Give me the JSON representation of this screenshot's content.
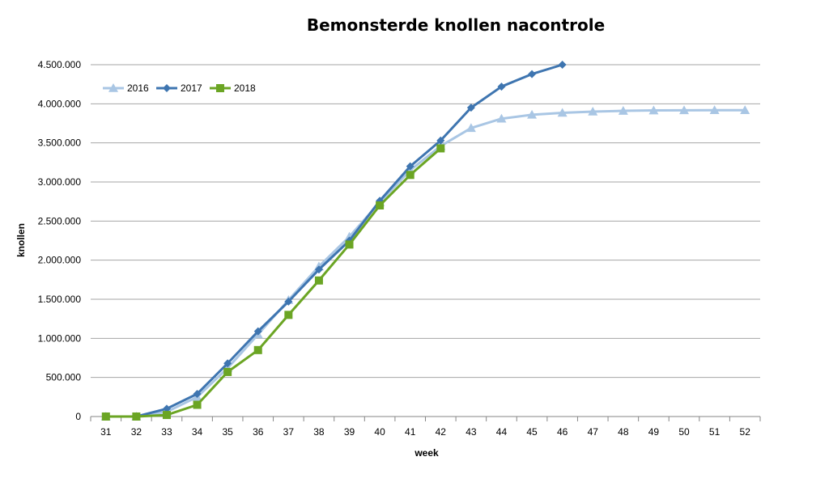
{
  "chart_data": {
    "type": "line",
    "title": "Bemonsterde knollen nacontrole",
    "xlabel": "week",
    "ylabel": "knollen",
    "categories": [
      "31",
      "32",
      "33",
      "34",
      "35",
      "36",
      "37",
      "38",
      "39",
      "40",
      "41",
      "42",
      "43",
      "44",
      "45",
      "46",
      "47",
      "48",
      "49",
      "50",
      "51",
      "52"
    ],
    "ylim": [
      0,
      4500000
    ],
    "yticks": [
      0,
      500000,
      1000000,
      1500000,
      2000000,
      2500000,
      3000000,
      3500000,
      4000000,
      4500000
    ],
    "ytick_labels": [
      "0",
      "500.000",
      "1.000.000",
      "1.500.000",
      "2.000.000",
      "2.500.000",
      "3.000.000",
      "3.500.000",
      "4.000.000",
      "4.500.000"
    ],
    "grid": true,
    "legend_position": "top-left",
    "series": [
      {
        "name": "2016",
        "color": "#A9C6E4",
        "marker": "triangle",
        "values": [
          0,
          0,
          60000,
          250000,
          620000,
          1050000,
          1490000,
          1920000,
          2300000,
          2740000,
          3150000,
          3460000,
          3690000,
          3810000,
          3860000,
          3885000,
          3900000,
          3910000,
          3915000,
          3917000,
          3918000,
          3918000
        ]
      },
      {
        "name": "2017",
        "color": "#3E75B0",
        "marker": "diamond",
        "values": [
          0,
          0,
          100000,
          290000,
          680000,
          1090000,
          1470000,
          1880000,
          2250000,
          2760000,
          3200000,
          3530000,
          3950000,
          4220000,
          4380000,
          4500000,
          null,
          null,
          null,
          null,
          null,
          null
        ]
      },
      {
        "name": "2018",
        "color": "#6BA524",
        "marker": "square",
        "values": [
          0,
          0,
          20000,
          150000,
          570000,
          850000,
          1300000,
          1740000,
          2200000,
          2700000,
          3090000,
          3430000,
          null,
          null,
          null,
          null,
          null,
          null,
          null,
          null,
          null,
          null
        ]
      }
    ]
  }
}
